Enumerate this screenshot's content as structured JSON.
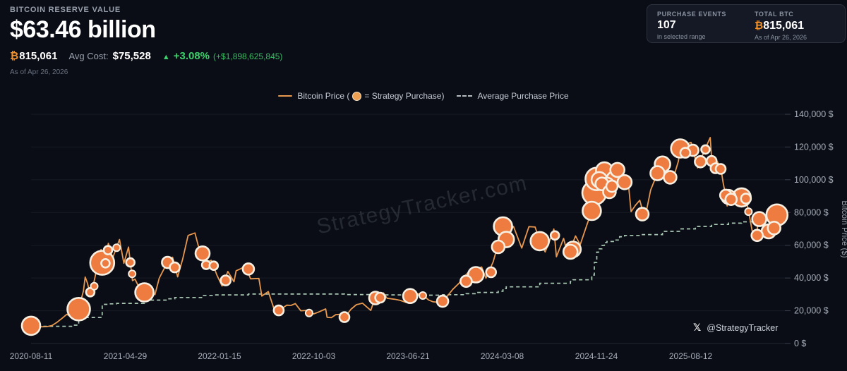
{
  "header": {
    "section_label": "BITCOIN RESERVE VALUE",
    "value": "$63.46 billion",
    "btc_symbol": "₿",
    "btc_amount": "815,061",
    "avg_cost_label": "Avg Cost:",
    "avg_cost_value": "$75,528",
    "change_arrow": "▲",
    "change_pct": "+3.08%",
    "change_abs": "(+$1,898,625,845)",
    "as_of": "As of Apr 26, 2026"
  },
  "stats_card": {
    "purchase_events": {
      "label": "PURCHASE EVENTS",
      "value": "107",
      "sub": "in selected range"
    },
    "total_btc": {
      "label": "TOTAL BTC",
      "symbol": "₿",
      "value": "815,061",
      "sub": "As of Apr 26, 2026"
    }
  },
  "legend": {
    "price_prefix": "Bitcoin Price (",
    "price_suffix": "= Strategy Purchase)",
    "avg_label": "Average Purchase Price"
  },
  "watermark": {
    "text": "StrategyTracker.com"
  },
  "social": {
    "logo": "𝕏",
    "handle": "@StrategyTracker"
  },
  "colors": {
    "background": "#0a0d15",
    "price_line": "#e8984f",
    "bubble_fill": "#ee7b40",
    "bubble_stroke": "#f6efe2",
    "avg_line": "#a9c8b4",
    "grid": "rgba(150,160,175,0.10)",
    "grid_bottom": "rgba(150,160,175,0.18)",
    "tick_text": "#a7aeb9",
    "axis_title": "#9ba3ad",
    "watermark": "rgba(200,210,225,0.14)"
  },
  "chart_data": {
    "type": "line",
    "title": "Bitcoin price with Strategy purchase events and average purchase price",
    "ylabel": "Bitcoin Price ($)",
    "xlabel": "",
    "x_range": [
      "2020-08-11",
      "2026-04-26"
    ],
    "ylim_thousands": [
      0,
      140
    ],
    "grid": "horizontal",
    "legend_position": "top-center",
    "yticks": [
      {
        "v": 0,
        "label": "0 $"
      },
      {
        "v": 20,
        "label": "20,000 $"
      },
      {
        "v": 40,
        "label": "40,000 $"
      },
      {
        "v": 60,
        "label": "60,000 $"
      },
      {
        "v": 80,
        "label": "80,000 $"
      },
      {
        "v": 100,
        "label": "100,000 $"
      },
      {
        "v": 120,
        "label": "120,000 $"
      },
      {
        "v": 140,
        "label": "140,000 $"
      }
    ],
    "xticks": [
      "2020-08-11",
      "2021-04-29",
      "2022-01-15",
      "2022-10-03",
      "2023-06-21",
      "2024-03-08",
      "2024-11-24",
      "2025-08-12"
    ],
    "price_line_thousands": [
      [
        "2020-08-11",
        11.9
      ],
      [
        "2020-08-23",
        11.4
      ],
      [
        "2020-09-05",
        10.2
      ],
      [
        "2020-09-24",
        10.3
      ],
      [
        "2020-10-08",
        11.0
      ],
      [
        "2020-10-21",
        12.8
      ],
      [
        "2020-11-06",
        15.6
      ],
      [
        "2020-11-18",
        17.8
      ],
      [
        "2020-11-26",
        16.9
      ],
      [
        "2020-12-11",
        18.1
      ],
      [
        "2020-12-21",
        22.4
      ],
      [
        "2020-12-27",
        26.3
      ],
      [
        "2021-01-03",
        32.1
      ],
      [
        "2021-01-08",
        40.6
      ],
      [
        "2021-01-14",
        37.0
      ],
      [
        "2021-01-21",
        30.8
      ],
      [
        "2021-01-29",
        34.3
      ],
      [
        "2021-02-08",
        44.6
      ],
      [
        "2021-02-21",
        57.4
      ],
      [
        "2021-02-28",
        45.1
      ],
      [
        "2021-03-13",
        61.2
      ],
      [
        "2021-03-25",
        52.2
      ],
      [
        "2021-04-13",
        63.5
      ],
      [
        "2021-04-25",
        49.0
      ],
      [
        "2021-05-08",
        58.9
      ],
      [
        "2021-05-19",
        38.4
      ],
      [
        "2021-05-26",
        39.3
      ],
      [
        "2021-06-08",
        33.4
      ],
      [
        "2021-06-21",
        31.6
      ],
      [
        "2021-06-26",
        30.4
      ],
      [
        "2021-07-04",
        34.7
      ],
      [
        "2021-07-20",
        29.8
      ],
      [
        "2021-08-01",
        39.9
      ],
      [
        "2021-08-23",
        49.3
      ],
      [
        "2021-09-07",
        52.7
      ],
      [
        "2021-09-21",
        40.7
      ],
      [
        "2021-10-05",
        51.5
      ],
      [
        "2021-10-20",
        66.0
      ],
      [
        "2021-11-08",
        67.5
      ],
      [
        "2021-11-19",
        58.1
      ],
      [
        "2021-11-28",
        54.7
      ],
      [
        "2021-12-04",
        49.2
      ],
      [
        "2021-12-23",
        50.8
      ],
      [
        "2022-01-08",
        41.7
      ],
      [
        "2022-01-22",
        35.1
      ],
      [
        "2022-02-07",
        44.0
      ],
      [
        "2022-02-24",
        37.7
      ],
      [
        "2022-03-02",
        44.4
      ],
      [
        "2022-03-28",
        47.4
      ],
      [
        "2022-04-11",
        39.5
      ],
      [
        "2022-05-04",
        39.7
      ],
      [
        "2022-05-12",
        29.0
      ],
      [
        "2022-05-30",
        31.7
      ],
      [
        "2022-06-13",
        22.5
      ],
      [
        "2022-06-18",
        19.0
      ],
      [
        "2022-07-08",
        21.6
      ],
      [
        "2022-07-20",
        23.4
      ],
      [
        "2022-08-13",
        24.4
      ],
      [
        "2022-08-28",
        20.0
      ],
      [
        "2022-09-13",
        20.2
      ],
      [
        "2022-09-21",
        18.5
      ],
      [
        "2022-10-15",
        19.1
      ],
      [
        "2022-11-05",
        21.1
      ],
      [
        "2022-11-09",
        16.0
      ],
      [
        "2022-11-21",
        15.8
      ],
      [
        "2022-12-15",
        17.8
      ],
      [
        "2022-12-30",
        16.5
      ],
      [
        "2023-01-14",
        20.9
      ],
      [
        "2023-01-29",
        23.7
      ],
      [
        "2023-02-15",
        24.6
      ],
      [
        "2023-03-10",
        20.2
      ],
      [
        "2023-03-22",
        28.1
      ],
      [
        "2023-04-14",
        30.9
      ],
      [
        "2023-04-24",
        27.6
      ],
      [
        "2023-05-15",
        27.0
      ],
      [
        "2023-06-15",
        25.1
      ],
      [
        "2023-07-03",
        31.2
      ],
      [
        "2023-07-23",
        30.1
      ],
      [
        "2023-08-17",
        26.6
      ],
      [
        "2023-09-11",
        25.2
      ],
      [
        "2023-10-01",
        27.0
      ],
      [
        "2023-10-23",
        33.1
      ],
      [
        "2023-11-09",
        36.7
      ],
      [
        "2023-12-08",
        44.2
      ],
      [
        "2024-01-11",
        46.7
      ],
      [
        "2024-01-23",
        39.9
      ],
      [
        "2024-02-12",
        49.9
      ],
      [
        "2024-02-28",
        62.5
      ],
      [
        "2024-03-13",
        73.1
      ],
      [
        "2024-03-19",
        63.5
      ],
      [
        "2024-04-08",
        71.6
      ],
      [
        "2024-05-01",
        58.3
      ],
      [
        "2024-05-21",
        71.4
      ],
      [
        "2024-06-07",
        71.1
      ],
      [
        "2024-06-24",
        60.3
      ],
      [
        "2024-07-05",
        55.9
      ],
      [
        "2024-07-29",
        69.9
      ],
      [
        "2024-08-05",
        53.0
      ],
      [
        "2024-08-25",
        64.2
      ],
      [
        "2024-09-06",
        53.9
      ],
      [
        "2024-09-27",
        65.7
      ],
      [
        "2024-10-10",
        60.3
      ],
      [
        "2024-10-29",
        72.7
      ],
      [
        "2024-11-11",
        81.0
      ],
      [
        "2024-11-22",
        98.9
      ],
      [
        "2024-12-05",
        101.1
      ],
      [
        "2024-12-17",
        106.1
      ],
      [
        "2024-12-30",
        92.6
      ],
      [
        "2025-01-20",
        106.1
      ],
      [
        "2025-02-03",
        97.6
      ],
      [
        "2025-02-21",
        96.2
      ],
      [
        "2025-02-28",
        80.5
      ],
      [
        "2025-03-24",
        87.5
      ],
      [
        "2025-04-07",
        76.3
      ],
      [
        "2025-04-23",
        93.7
      ],
      [
        "2025-05-12",
        104.1
      ],
      [
        "2025-05-22",
        110.7
      ],
      [
        "2025-06-22",
        99.0
      ],
      [
        "2025-07-09",
        111.3
      ],
      [
        "2025-07-14",
        119.1
      ],
      [
        "2025-08-13",
        122.8
      ],
      [
        "2025-08-31",
        107.3
      ],
      [
        "2025-09-18",
        117.3
      ],
      [
        "2025-10-05",
        125.8
      ],
      [
        "2025-10-10",
        110.0
      ],
      [
        "2025-10-17",
        105.0
      ],
      [
        "2025-10-25",
        111.0
      ],
      [
        "2025-11-04",
        106.5
      ],
      [
        "2025-11-10",
        98.0
      ],
      [
        "2025-11-16",
        91.5
      ],
      [
        "2025-11-21",
        84.0
      ],
      [
        "2025-11-28",
        91.0
      ],
      [
        "2025-12-10",
        87.5
      ],
      [
        "2025-12-20",
        92.0
      ],
      [
        "2025-12-31",
        89.2
      ],
      [
        "2026-01-12",
        88.5
      ],
      [
        "2026-01-20",
        80.0
      ],
      [
        "2026-01-30",
        68.0
      ],
      [
        "2026-02-07",
        63.0
      ],
      [
        "2026-02-17",
        76.0
      ],
      [
        "2026-02-27",
        73.5
      ],
      [
        "2026-03-10",
        70.0
      ],
      [
        "2026-03-18",
        68.0
      ],
      [
        "2026-03-28",
        73.0
      ],
      [
        "2026-04-07",
        78.5
      ],
      [
        "2026-04-15",
        74.5
      ],
      [
        "2026-04-26",
        77.9
      ]
    ],
    "purchases": [
      [
        "2020-08-11",
        10.8,
        13
      ],
      [
        "2020-12-21",
        21.0,
        16
      ],
      [
        "2021-01-22",
        31.3,
        6
      ],
      [
        "2021-02-02",
        35.0,
        5
      ],
      [
        "2021-02-24",
        49.3,
        17
      ],
      [
        "2021-03-05",
        49.0,
        6
      ],
      [
        "2021-03-12",
        57.0,
        6
      ],
      [
        "2021-04-05",
        58.5,
        5
      ],
      [
        "2021-05-13",
        49.5,
        6
      ],
      [
        "2021-05-18",
        42.5,
        5
      ],
      [
        "2021-06-21",
        31.2,
        13
      ],
      [
        "2021-08-24",
        49.5,
        8
      ],
      [
        "2021-09-13",
        46.5,
        7
      ],
      [
        "2021-11-29",
        55.0,
        10
      ],
      [
        "2021-12-09",
        48.0,
        6
      ],
      [
        "2021-12-30",
        47.5,
        6
      ],
      [
        "2022-02-01",
        38.5,
        7
      ],
      [
        "2022-04-05",
        45.5,
        8
      ],
      [
        "2022-06-28",
        20.2,
        7
      ],
      [
        "2022-09-20",
        18.6,
        5
      ],
      [
        "2022-12-27",
        16.1,
        7
      ],
      [
        "2023-03-23",
        27.8,
        9
      ],
      [
        "2023-04-05",
        28.0,
        7
      ],
      [
        "2023-06-27",
        29.0,
        10
      ],
      [
        "2023-08-01",
        29.3,
        5
      ],
      [
        "2023-09-25",
        25.8,
        8
      ],
      [
        "2023-11-29",
        38.0,
        8
      ],
      [
        "2023-12-26",
        42.0,
        11
      ],
      [
        "2024-02-06",
        43.5,
        7
      ],
      [
        "2024-02-26",
        59.0,
        9
      ],
      [
        "2024-03-10",
        71.5,
        13
      ],
      [
        "2024-03-19",
        63.5,
        11
      ],
      [
        "2024-06-20",
        62.5,
        13
      ],
      [
        "2024-08-01",
        66.0,
        6
      ],
      [
        "2024-09-13",
        56.0,
        10
      ],
      [
        "2024-09-20",
        57.5,
        11
      ],
      [
        "2024-11-11",
        81.0,
        13
      ],
      [
        "2024-11-18",
        92.0,
        17
      ],
      [
        "2024-11-25",
        100.5,
        16
      ],
      [
        "2024-12-02",
        100.0,
        11
      ],
      [
        "2024-12-09",
        97.5,
        9
      ],
      [
        "2024-12-16",
        105.5,
        12
      ],
      [
        "2024-12-23",
        97.0,
        10
      ],
      [
        "2024-12-30",
        92.6,
        9
      ],
      [
        "2025-01-06",
        96.0,
        8
      ],
      [
        "2025-01-13",
        100.5,
        11
      ],
      [
        "2025-01-21",
        106.0,
        10
      ],
      [
        "2025-02-10",
        98.5,
        10
      ],
      [
        "2025-03-31",
        79.0,
        9
      ],
      [
        "2025-05-12",
        104.0,
        10
      ],
      [
        "2025-05-26",
        109.5,
        11
      ],
      [
        "2025-06-16",
        101.5,
        9
      ],
      [
        "2025-07-14",
        119.1,
        13
      ],
      [
        "2025-07-28",
        116.5,
        7
      ],
      [
        "2025-08-18",
        118.0,
        8
      ],
      [
        "2025-09-08",
        111.0,
        8
      ],
      [
        "2025-09-22",
        118.5,
        6
      ],
      [
        "2025-10-09",
        111.5,
        7
      ],
      [
        "2025-10-20",
        107.0,
        7
      ],
      [
        "2025-11-03",
        106.6,
        7
      ],
      [
        "2025-11-17",
        90.5,
        8
      ],
      [
        "2025-11-25",
        89.5,
        10
      ],
      [
        "2025-12-02",
        88.0,
        8
      ],
      [
        "2025-12-31",
        89.2,
        13
      ],
      [
        "2026-01-12",
        88.5,
        7
      ],
      [
        "2026-01-19",
        80.5,
        5
      ],
      [
        "2026-02-12",
        66.0,
        8
      ],
      [
        "2026-02-18",
        76.0,
        10
      ],
      [
        "2026-03-16",
        68.5,
        10
      ],
      [
        "2026-03-31",
        70.5,
        9
      ],
      [
        "2026-04-08",
        78.5,
        15
      ]
    ],
    "avg_purchase_line_thousands": [
      [
        "2020-08-11",
        10.8
      ],
      [
        "2020-09-14",
        10.5
      ],
      [
        "2020-12-04",
        11.2
      ],
      [
        "2020-12-21",
        15.9
      ],
      [
        "2021-02-24",
        23.9
      ],
      [
        "2021-03-12",
        24.2
      ],
      [
        "2021-04-05",
        24.5
      ],
      [
        "2021-06-21",
        26.5
      ],
      [
        "2021-08-24",
        27.3
      ],
      [
        "2021-09-13",
        28.1
      ],
      [
        "2021-11-29",
        29.4
      ],
      [
        "2021-12-30",
        29.7
      ],
      [
        "2022-04-05",
        30.2
      ],
      [
        "2022-12-27",
        29.9
      ],
      [
        "2023-03-23",
        29.7
      ],
      [
        "2023-06-27",
        29.5
      ],
      [
        "2023-09-25",
        29.8
      ],
      [
        "2023-11-29",
        30.4
      ],
      [
        "2023-12-26",
        31.2
      ],
      [
        "2024-02-26",
        31.9
      ],
      [
        "2024-03-10",
        33.5
      ],
      [
        "2024-03-19",
        34.6
      ],
      [
        "2024-06-20",
        36.8
      ],
      [
        "2024-09-13",
        38.0
      ],
      [
        "2024-09-20",
        38.9
      ],
      [
        "2024-11-11",
        41.8
      ],
      [
        "2024-11-18",
        49.5
      ],
      [
        "2024-11-25",
        55.8
      ],
      [
        "2024-12-02",
        57.8
      ],
      [
        "2024-12-09",
        59.9
      ],
      [
        "2024-12-16",
        61.7
      ],
      [
        "2024-12-23",
        62.3
      ],
      [
        "2025-01-13",
        63.2
      ],
      [
        "2025-01-27",
        65.2
      ],
      [
        "2025-02-10",
        66.0
      ],
      [
        "2025-03-31",
        66.5
      ],
      [
        "2025-05-26",
        68.5
      ],
      [
        "2025-07-14",
        70.0
      ],
      [
        "2025-08-25",
        71.5
      ],
      [
        "2025-10-09",
        72.7
      ],
      [
        "2025-11-25",
        73.5
      ],
      [
        "2025-12-31",
        74.3
      ],
      [
        "2026-02-18",
        74.8
      ],
      [
        "2026-03-16",
        75.1
      ],
      [
        "2026-04-08",
        75.5
      ],
      [
        "2026-04-26",
        75.5
      ]
    ]
  }
}
